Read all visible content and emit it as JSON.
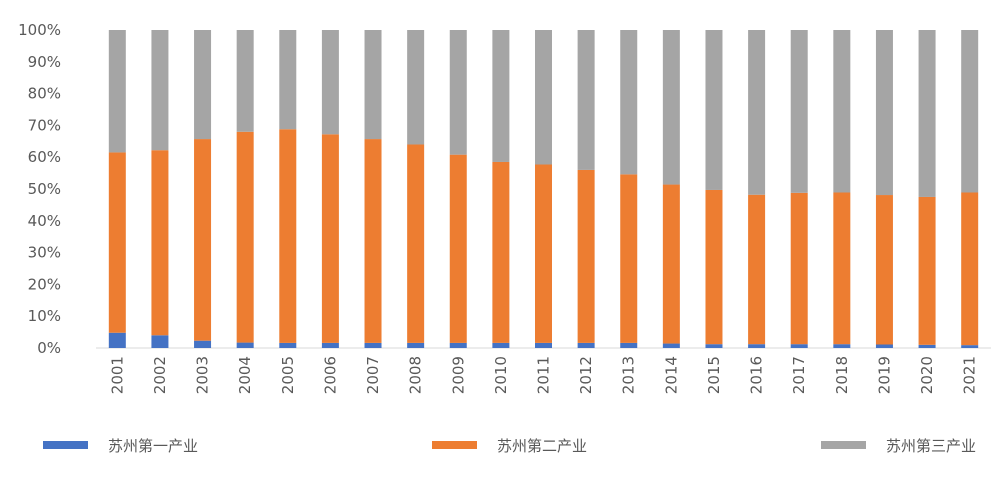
{
  "chart_data": {
    "type": "bar",
    "stacked": true,
    "percent": true,
    "categories": [
      "2001",
      "2002",
      "2003",
      "2004",
      "2005",
      "2006",
      "2007",
      "2008",
      "2009",
      "2010",
      "2011",
      "2012",
      "2013",
      "2014",
      "2015",
      "2016",
      "2017",
      "2018",
      "2019",
      "2020",
      "2021"
    ],
    "series": [
      {
        "name": "苏州第一产业",
        "color": "#4472C4",
        "values": [
          4.8,
          4.0,
          2.3,
          1.7,
          1.6,
          1.6,
          1.6,
          1.6,
          1.6,
          1.6,
          1.6,
          1.6,
          1.6,
          1.4,
          1.2,
          1.2,
          1.2,
          1.2,
          1.1,
          1.0,
          0.9
        ]
      },
      {
        "name": "苏州第二产业",
        "color": "#ED7D31",
        "values": [
          56.7,
          58.2,
          63.4,
          66.3,
          67.2,
          65.6,
          64.1,
          62.4,
          59.2,
          56.9,
          56.1,
          54.4,
          53.0,
          50.0,
          48.5,
          47.0,
          47.6,
          47.7,
          47.0,
          46.5,
          48.0
        ]
      },
      {
        "name": "苏州第三产业",
        "color": "#A5A5A5",
        "values": [
          38.5,
          37.8,
          34.3,
          32.0,
          31.2,
          32.8,
          34.3,
          36.0,
          39.2,
          41.5,
          42.3,
          44.0,
          45.4,
          48.6,
          50.3,
          51.8,
          51.2,
          51.1,
          51.9,
          52.5,
          51.1
        ]
      }
    ],
    "y_ticks": [
      "0%",
      "10%",
      "20%",
      "30%",
      "40%",
      "50%",
      "60%",
      "70%",
      "80%",
      "90%",
      "100%"
    ],
    "ylim": [
      0,
      100
    ],
    "grid": false,
    "legend_position": "bottom"
  }
}
